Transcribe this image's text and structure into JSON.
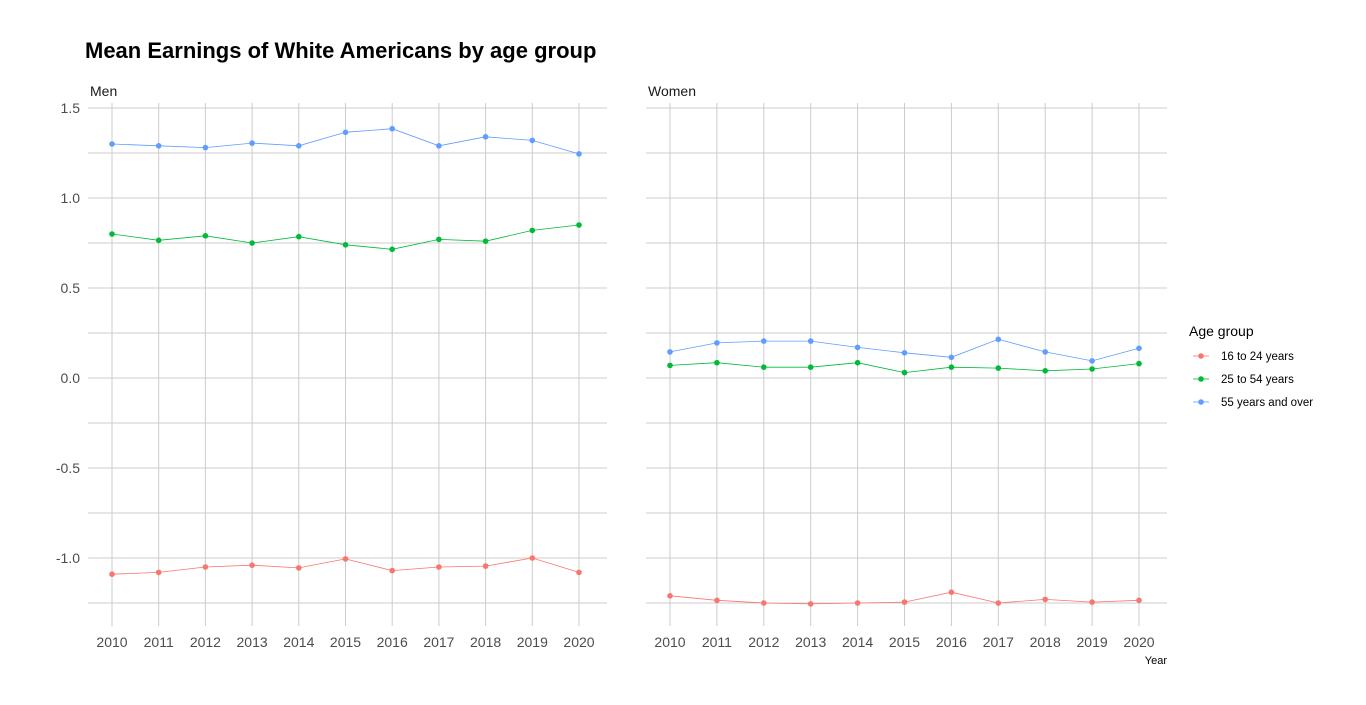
{
  "chart_data": {
    "type": "line",
    "title": "Mean Earnings of White Americans by age group",
    "xlabel": "Year",
    "ylabel": "",
    "ylim": [
      -1.25,
      1.5
    ],
    "yticks": [
      "1.5",
      "1.0",
      "0.5",
      "0.0",
      "-0.5",
      "-1.0"
    ],
    "x": [
      "2010",
      "2011",
      "2012",
      "2013",
      "2014",
      "2015",
      "2016",
      "2017",
      "2018",
      "2019",
      "2020"
    ],
    "legend": {
      "title": "Age group",
      "placement": "right",
      "entries": [
        {
          "name": "16 to 24 years",
          "color": "#F8766D"
        },
        {
          "name": "25 to 54 years",
          "color": "#00BA38"
        },
        {
          "name": "55 years and over",
          "color": "#619CFF"
        }
      ]
    },
    "panels": [
      {
        "name": "Men",
        "series": [
          {
            "name": "16 to 24 years",
            "values": [
              -1.09,
              -1.08,
              -1.05,
              -1.04,
              -1.055,
              -1.005,
              -1.07,
              -1.05,
              -1.045,
              -1.0,
              -1.08
            ]
          },
          {
            "name": "25 to 54 years",
            "values": [
              0.8,
              0.765,
              0.79,
              0.75,
              0.785,
              0.74,
              0.715,
              0.77,
              0.76,
              0.82,
              0.85
            ]
          },
          {
            "name": "55 years and over",
            "values": [
              1.3,
              1.29,
              1.28,
              1.305,
              1.29,
              1.365,
              1.385,
              1.29,
              1.34,
              1.32,
              1.245
            ]
          }
        ]
      },
      {
        "name": "Women",
        "series": [
          {
            "name": "16 to 24 years",
            "values": [
              -1.21,
              -1.235,
              -1.25,
              -1.255,
              -1.25,
              -1.245,
              -1.19,
              -1.25,
              -1.23,
              -1.245,
              -1.235
            ]
          },
          {
            "name": "25 to 54 years",
            "values": [
              0.07,
              0.085,
              0.06,
              0.06,
              0.085,
              0.03,
              0.06,
              0.055,
              0.04,
              0.05,
              0.08
            ]
          },
          {
            "name": "55 years and over",
            "values": [
              0.145,
              0.195,
              0.205,
              0.205,
              0.17,
              0.14,
              0.115,
              0.215,
              0.145,
              0.095,
              0.165
            ]
          }
        ]
      }
    ]
  }
}
